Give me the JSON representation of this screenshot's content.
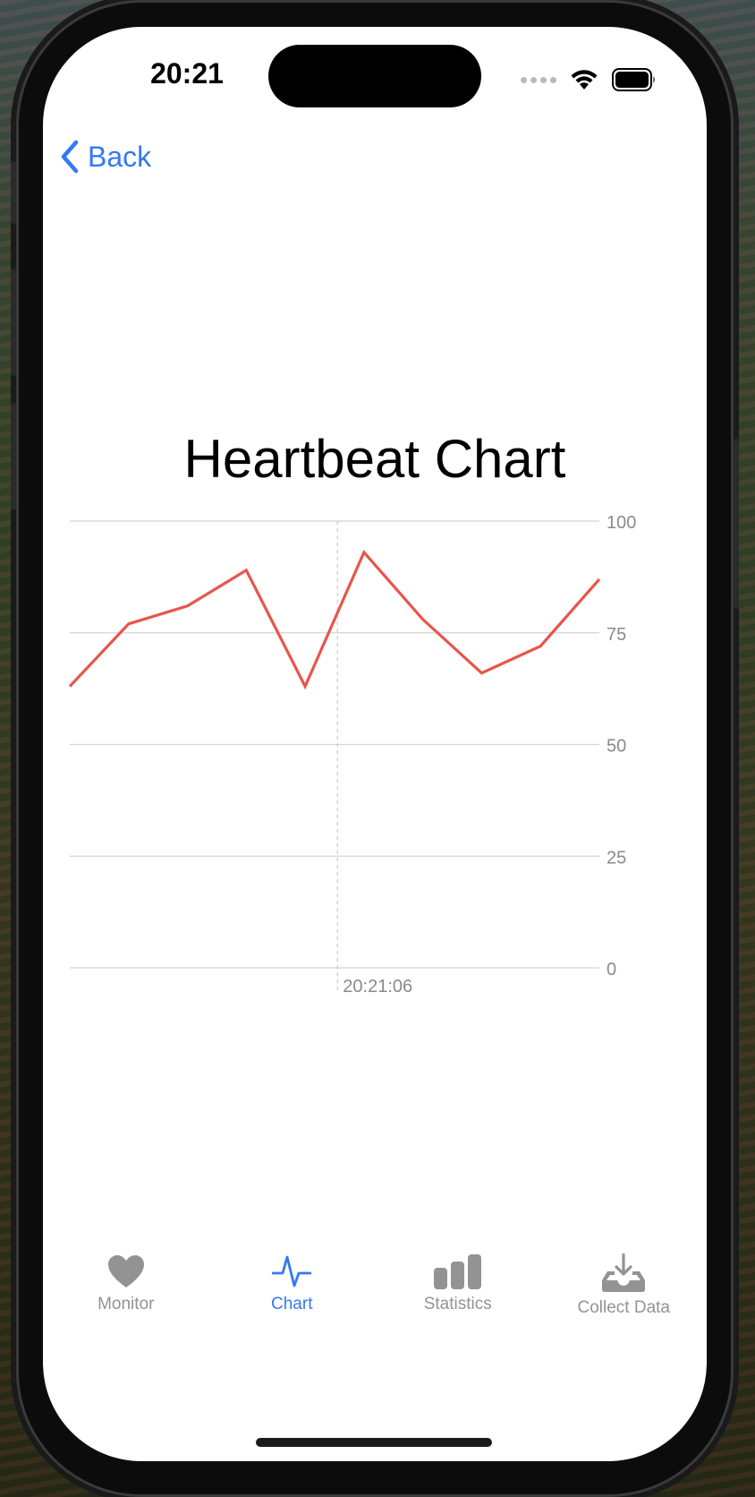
{
  "status_bar": {
    "time": "20:21",
    "icons": [
      "signal-dots-icon",
      "wifi-icon",
      "battery-icon"
    ]
  },
  "nav": {
    "back_label": "Back",
    "back_icon": "chevron-left-icon",
    "accent_color": "#3478f6"
  },
  "chart_title": "Heartbeat Chart",
  "chart_data": {
    "type": "line",
    "title": "Heartbeat Chart",
    "series": [
      {
        "color": "#e8554a",
        "values": [
          63,
          77,
          81,
          89,
          63,
          93,
          78,
          66,
          72,
          87
        ]
      }
    ],
    "ylim": [
      0,
      100
    ],
    "y_ticks": [
      "100",
      "75",
      "50",
      "25",
      "0"
    ],
    "y_tick_values": [
      100,
      75,
      50,
      25,
      0
    ],
    "y_axis_side": "right",
    "x_tick_label": "20:21:06",
    "x_tick_index": 4.55,
    "grid": true
  },
  "tab_bar": {
    "items": [
      {
        "label": "Monitor",
        "icon": "heart-icon",
        "active": false
      },
      {
        "label": "Chart",
        "icon": "waveform-icon",
        "active": true
      },
      {
        "label": "Statistics",
        "icon": "bar-chart-icon",
        "active": false
      },
      {
        "label": "Collect Data",
        "icon": "download-tray-icon",
        "active": false
      }
    ],
    "active_color": "#3478f6",
    "inactive_color": "#939393"
  }
}
